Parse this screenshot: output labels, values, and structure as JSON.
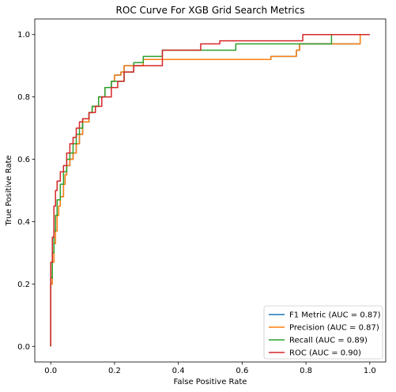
{
  "chart_data": {
    "type": "line",
    "title": "ROC Curve For XGB Grid Search Metrics",
    "xlabel": "False Positive Rate",
    "ylabel": "True Positive Rate",
    "xlim": [
      -0.05,
      1.05
    ],
    "ylim": [
      -0.05,
      1.05
    ],
    "xticks": [
      0.0,
      0.2,
      0.4,
      0.6,
      0.8,
      1.0
    ],
    "yticks": [
      0.0,
      0.2,
      0.4,
      0.6,
      0.8,
      1.0
    ],
    "xtick_labels": [
      "0.0",
      "0.2",
      "0.4",
      "0.6",
      "0.8",
      "1.0"
    ],
    "ytick_labels": [
      "0.0",
      "0.2",
      "0.4",
      "0.6",
      "0.8",
      "1.0"
    ],
    "grid": false,
    "legend_position": "lower-right",
    "series": [
      {
        "name": "F1 Metric (AUC = 0.87)",
        "color": "#1f77b4",
        "x": [
          0.0,
          0.0,
          0.005,
          0.005,
          0.01,
          0.01,
          0.015,
          0.015,
          0.02,
          0.02,
          0.025,
          0.025,
          0.03,
          0.03,
          0.04,
          0.04,
          0.045,
          0.045,
          0.05,
          0.05,
          0.06,
          0.06,
          0.07,
          0.07,
          0.08,
          0.08,
          0.09,
          0.09,
          0.1,
          0.1,
          0.12,
          0.12,
          0.13,
          0.13,
          0.15,
          0.15,
          0.17,
          0.17,
          0.19,
          0.19,
          0.2,
          0.2,
          0.22,
          0.22,
          0.23,
          0.23,
          0.29,
          0.29,
          0.69,
          0.69,
          0.77,
          0.77,
          0.78,
          0.78,
          0.97,
          0.97,
          1.0
        ],
        "y": [
          0.0,
          0.2,
          0.2,
          0.27,
          0.27,
          0.33,
          0.33,
          0.37,
          0.37,
          0.42,
          0.42,
          0.45,
          0.45,
          0.48,
          0.48,
          0.52,
          0.52,
          0.55,
          0.55,
          0.58,
          0.58,
          0.6,
          0.6,
          0.62,
          0.62,
          0.65,
          0.65,
          0.68,
          0.68,
          0.72,
          0.72,
          0.75,
          0.75,
          0.77,
          0.77,
          0.8,
          0.8,
          0.83,
          0.83,
          0.85,
          0.85,
          0.87,
          0.87,
          0.88,
          0.88,
          0.9,
          0.9,
          0.92,
          0.92,
          0.93,
          0.93,
          0.95,
          0.95,
          0.97,
          0.97,
          1.0,
          1.0
        ]
      },
      {
        "name": "Precision (AUC = 0.87)",
        "color": "#ff7f0e",
        "x": [
          0.0,
          0.0,
          0.005,
          0.005,
          0.01,
          0.01,
          0.015,
          0.015,
          0.02,
          0.02,
          0.025,
          0.025,
          0.03,
          0.03,
          0.04,
          0.04,
          0.045,
          0.045,
          0.05,
          0.05,
          0.06,
          0.06,
          0.07,
          0.07,
          0.08,
          0.08,
          0.09,
          0.09,
          0.1,
          0.1,
          0.12,
          0.12,
          0.13,
          0.13,
          0.15,
          0.15,
          0.17,
          0.17,
          0.19,
          0.19,
          0.2,
          0.2,
          0.22,
          0.22,
          0.23,
          0.23,
          0.29,
          0.29,
          0.69,
          0.69,
          0.77,
          0.77,
          0.78,
          0.78,
          0.97,
          0.97,
          1.0
        ],
        "y": [
          0.0,
          0.2,
          0.2,
          0.27,
          0.27,
          0.33,
          0.33,
          0.37,
          0.37,
          0.42,
          0.42,
          0.45,
          0.45,
          0.48,
          0.48,
          0.52,
          0.52,
          0.55,
          0.55,
          0.58,
          0.58,
          0.6,
          0.6,
          0.62,
          0.62,
          0.65,
          0.65,
          0.68,
          0.68,
          0.72,
          0.72,
          0.75,
          0.75,
          0.77,
          0.77,
          0.8,
          0.8,
          0.83,
          0.83,
          0.85,
          0.85,
          0.87,
          0.87,
          0.88,
          0.88,
          0.9,
          0.9,
          0.92,
          0.92,
          0.93,
          0.93,
          0.95,
          0.95,
          0.97,
          0.97,
          1.0,
          1.0
        ]
      },
      {
        "name": "Recall (AUC = 0.89)",
        "color": "#2ca02c",
        "x": [
          0.0,
          0.0,
          0.005,
          0.005,
          0.01,
          0.01,
          0.015,
          0.015,
          0.02,
          0.02,
          0.03,
          0.03,
          0.04,
          0.04,
          0.05,
          0.05,
          0.06,
          0.06,
          0.07,
          0.07,
          0.08,
          0.08,
          0.09,
          0.09,
          0.1,
          0.1,
          0.12,
          0.12,
          0.13,
          0.13,
          0.15,
          0.15,
          0.17,
          0.17,
          0.19,
          0.19,
          0.23,
          0.23,
          0.26,
          0.26,
          0.29,
          0.29,
          0.35,
          0.35,
          0.58,
          0.58,
          0.88,
          0.88,
          1.0
        ],
        "y": [
          0.0,
          0.22,
          0.22,
          0.3,
          0.3,
          0.37,
          0.37,
          0.42,
          0.42,
          0.47,
          0.47,
          0.52,
          0.52,
          0.56,
          0.56,
          0.6,
          0.6,
          0.62,
          0.62,
          0.65,
          0.65,
          0.68,
          0.68,
          0.7,
          0.7,
          0.73,
          0.73,
          0.75,
          0.75,
          0.77,
          0.77,
          0.8,
          0.8,
          0.83,
          0.83,
          0.85,
          0.85,
          0.88,
          0.88,
          0.91,
          0.91,
          0.93,
          0.93,
          0.95,
          0.95,
          0.97,
          0.97,
          1.0,
          1.0
        ]
      },
      {
        "name": "ROC (AUC = 0.90)",
        "color": "#d62728",
        "x": [
          0.0,
          0.0,
          0.005,
          0.005,
          0.01,
          0.01,
          0.015,
          0.015,
          0.02,
          0.02,
          0.03,
          0.03,
          0.04,
          0.04,
          0.05,
          0.05,
          0.06,
          0.06,
          0.07,
          0.07,
          0.08,
          0.08,
          0.09,
          0.09,
          0.1,
          0.1,
          0.12,
          0.12,
          0.14,
          0.14,
          0.16,
          0.16,
          0.19,
          0.19,
          0.21,
          0.21,
          0.23,
          0.23,
          0.26,
          0.26,
          0.35,
          0.35,
          0.47,
          0.47,
          0.53,
          0.53,
          0.79,
          0.79,
          0.86,
          0.86,
          1.0
        ],
        "y": [
          0.0,
          0.27,
          0.27,
          0.35,
          0.35,
          0.45,
          0.45,
          0.5,
          0.5,
          0.53,
          0.53,
          0.56,
          0.56,
          0.58,
          0.58,
          0.62,
          0.62,
          0.65,
          0.65,
          0.67,
          0.67,
          0.7,
          0.7,
          0.72,
          0.72,
          0.73,
          0.73,
          0.75,
          0.75,
          0.77,
          0.77,
          0.8,
          0.8,
          0.83,
          0.83,
          0.85,
          0.85,
          0.88,
          0.88,
          0.9,
          0.9,
          0.95,
          0.95,
          0.97,
          0.97,
          0.98,
          0.98,
          1.0,
          1.0,
          1.0,
          1.0
        ]
      }
    ]
  }
}
